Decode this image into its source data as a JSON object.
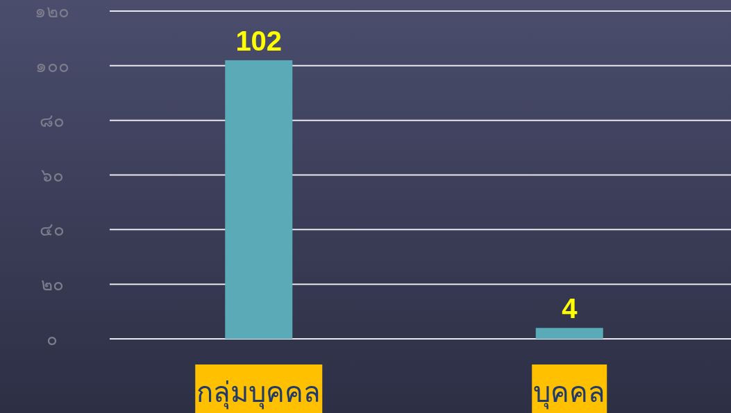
{
  "chart_data": {
    "type": "bar",
    "categories": [
      "กลุ่มบุคคล",
      "บุคคล"
    ],
    "values": [
      102,
      4
    ],
    "color": "#5aaab8",
    "ylim": [
      0,
      120
    ],
    "yticks": [
      {
        "value": 0,
        "label": "๐"
      },
      {
        "value": 20,
        "label": "๒๐"
      },
      {
        "value": 40,
        "label": "๔๐"
      },
      {
        "value": 60,
        "label": "๖๐"
      },
      {
        "value": 80,
        "label": "๘๐"
      },
      {
        "value": 100,
        "label": "๑๐๐"
      },
      {
        "value": 120,
        "label": "๑๒๐"
      }
    ],
    "grid": "y",
    "data_labels": true
  }
}
